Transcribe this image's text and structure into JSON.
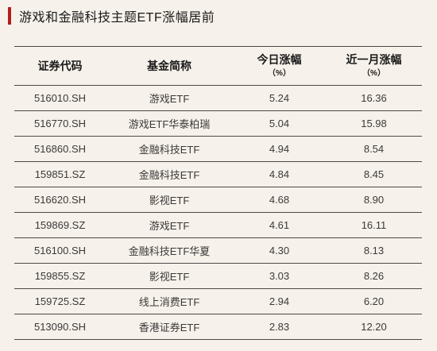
{
  "title": "游戏和金融科技主题ETF涨幅居前",
  "headers": {
    "code": "证券代码",
    "name": "基金简称",
    "today": "今日涨幅",
    "today_unit": "（%）",
    "month": "近一月涨幅",
    "month_unit": "（%）"
  },
  "rows": [
    {
      "code": "516010.SH",
      "name": "游戏ETF",
      "today": "5.24",
      "month": "16.36"
    },
    {
      "code": "516770.SH",
      "name": "游戏ETF华泰柏瑞",
      "today": "5.04",
      "month": "15.98"
    },
    {
      "code": "516860.SH",
      "name": "金融科技ETF",
      "today": "4.94",
      "month": "8.54"
    },
    {
      "code": "159851.SZ",
      "name": "金融科技ETF",
      "today": "4.84",
      "month": "8.45"
    },
    {
      "code": "516620.SH",
      "name": "影视ETF",
      "today": "4.68",
      "month": "8.90"
    },
    {
      "code": "159869.SZ",
      "name": "游戏ETF",
      "today": "4.61",
      "month": "16.11"
    },
    {
      "code": "516100.SH",
      "name": "金融科技ETF华夏",
      "today": "4.30",
      "month": "8.13"
    },
    {
      "code": "159855.SZ",
      "name": "影视ETF",
      "today": "3.03",
      "month": "8.26"
    },
    {
      "code": "159725.SZ",
      "name": "线上消费ETF",
      "today": "2.94",
      "month": "6.20"
    },
    {
      "code": "513090.SH",
      "name": "香港证券ETF",
      "today": "2.83",
      "month": "12.20"
    }
  ],
  "colors": {
    "accent": "#b21e1e",
    "background": "#f6f1ea",
    "rule": "#4a4a4a"
  }
}
